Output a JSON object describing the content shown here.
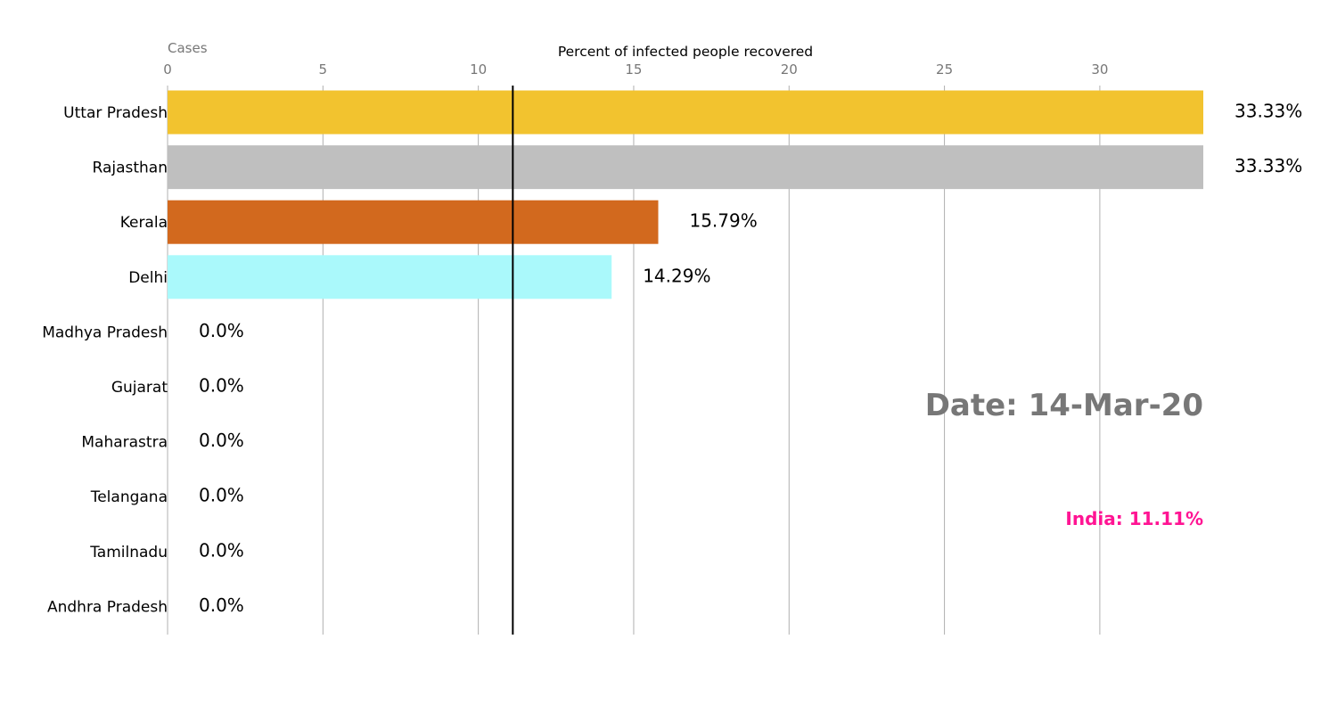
{
  "chart_data": {
    "type": "bar",
    "orientation": "horizontal",
    "title": "Percent of infected people recovered",
    "corner_label": "Cases",
    "xlim": [
      0,
      33.33
    ],
    "xticks": [
      0,
      5,
      10,
      15,
      20,
      25,
      30
    ],
    "grid": true,
    "categories": [
      "Uttar Pradesh",
      "Rajasthan",
      "Kerala",
      "Delhi",
      "Madhya Pradesh",
      "Gujarat",
      "Maharastra",
      "Telangana",
      "Tamilnadu",
      "Andhra Pradesh"
    ],
    "values": [
      33.33,
      33.33,
      15.79,
      14.29,
      0.0,
      0.0,
      0.0,
      0.0,
      0.0,
      0.0
    ],
    "value_labels": [
      "33.33%",
      "33.33%",
      "15.79%",
      "14.29%",
      "0.0%",
      "0.0%",
      "0.0%",
      "0.0%",
      "0.0%",
      "0.0%"
    ],
    "colors": [
      "#f2c32f",
      "#bfbfbf",
      "#d2691e",
      "#aaf9fb",
      "#dddddd",
      "#dddddd",
      "#dddddd",
      "#dddddd",
      "#dddddd",
      "#dddddd"
    ],
    "reference_line": {
      "value": 11.11,
      "color": "#000000"
    },
    "date_label": "Date: 14-Mar-20",
    "national_label": "India: 11.11%",
    "national_color": "#ff1493"
  }
}
